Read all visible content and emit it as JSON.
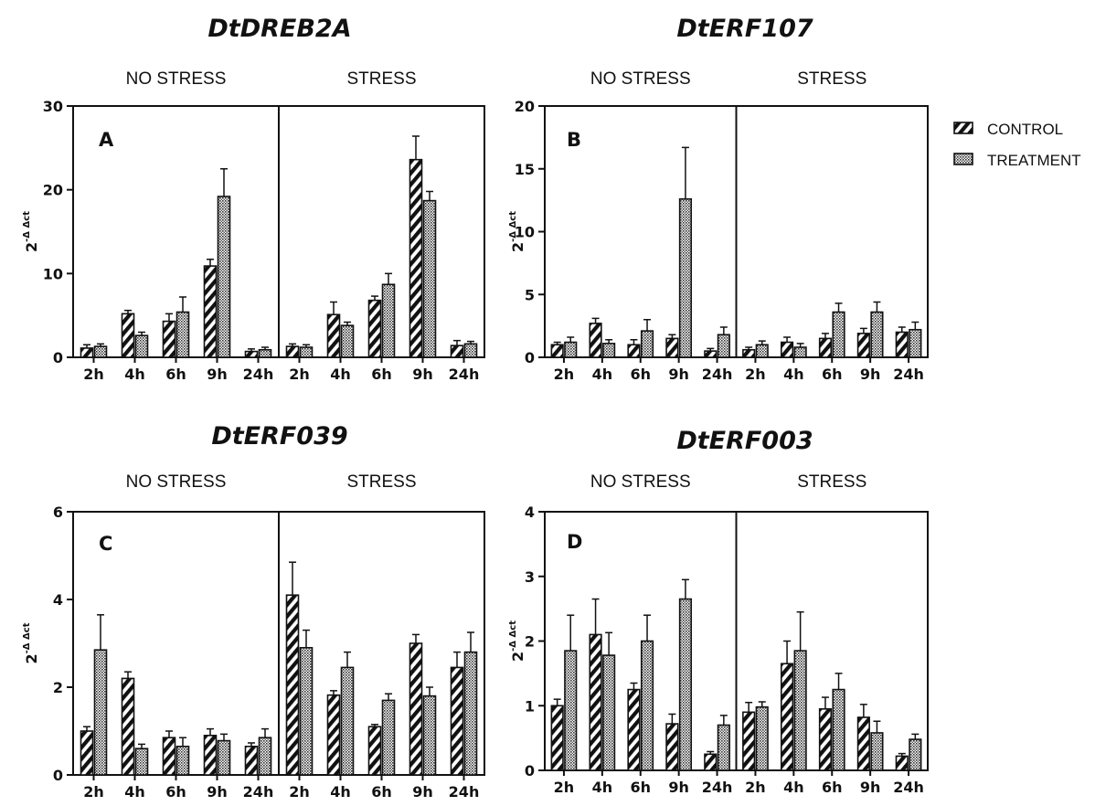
{
  "legend": {
    "position": "right",
    "items": [
      {
        "label": "CONTROL",
        "pattern": "hatch"
      },
      {
        "label": "TREATMENT",
        "pattern": "crosshatch"
      }
    ]
  },
  "colors": {
    "ink": "#111111",
    "background": "#ffffff"
  },
  "chart_data": [
    {
      "type": "bar",
      "title": "DtDREB2A",
      "panel_letter": "A",
      "ylabel_base": "2",
      "ylabel_exp": "-Δ Δct",
      "ylim": [
        0,
        30
      ],
      "yticks": [
        0,
        10,
        20,
        30
      ],
      "groups": [
        {
          "label": "NO STRESS",
          "categories": [
            "2h",
            "4h",
            "6h",
            "9h",
            "24h"
          ],
          "series": [
            {
              "values": [
                1.1,
                5.2,
                4.3,
                10.9,
                0.7
              ],
              "errors": [
                0.4,
                0.4,
                0.9,
                0.8,
                0.3
              ]
            },
            {
              "values": [
                1.3,
                2.6,
                5.4,
                19.2,
                0.9
              ],
              "errors": [
                0.3,
                0.4,
                1.8,
                3.3,
                0.3
              ]
            }
          ]
        },
        {
          "label": "STRESS",
          "categories": [
            "2h",
            "4h",
            "6h",
            "9h",
            "24h"
          ],
          "series": [
            {
              "values": [
                1.3,
                5.1,
                6.8,
                23.6,
                1.4
              ],
              "errors": [
                0.3,
                1.5,
                0.5,
                2.8,
                0.6
              ]
            },
            {
              "values": [
                1.2,
                3.8,
                8.7,
                18.7,
                1.6
              ],
              "errors": [
                0.3,
                0.4,
                1.3,
                1.1,
                0.3
              ]
            }
          ]
        }
      ]
    },
    {
      "type": "bar",
      "title": "DtERF107",
      "panel_letter": "B",
      "ylabel_base": "2",
      "ylabel_exp": "-Δ Δct",
      "ylim": [
        0,
        20
      ],
      "yticks": [
        0,
        5,
        10,
        15,
        20
      ],
      "groups": [
        {
          "label": "NO STRESS",
          "categories": [
            "2h",
            "4h",
            "6h",
            "9h",
            "24h"
          ],
          "series": [
            {
              "values": [
                1.0,
                2.7,
                1.0,
                1.5,
                0.5
              ],
              "errors": [
                0.2,
                0.4,
                0.4,
                0.3,
                0.2
              ]
            },
            {
              "values": [
                1.2,
                1.1,
                2.1,
                12.6,
                1.8
              ],
              "errors": [
                0.4,
                0.3,
                0.9,
                4.1,
                0.6
              ]
            }
          ]
        },
        {
          "label": "STRESS",
          "categories": [
            "2h",
            "4h",
            "6h",
            "9h",
            "24h"
          ],
          "series": [
            {
              "values": [
                0.6,
                1.2,
                1.5,
                1.9,
                2.0
              ],
              "errors": [
                0.2,
                0.4,
                0.4,
                0.4,
                0.4
              ]
            },
            {
              "values": [
                1.0,
                0.8,
                3.6,
                3.6,
                2.2
              ],
              "errors": [
                0.3,
                0.3,
                0.7,
                0.8,
                0.6
              ]
            }
          ]
        }
      ]
    },
    {
      "type": "bar",
      "title": "DtERF039",
      "panel_letter": "C",
      "ylabel_base": "2",
      "ylabel_exp": "-Δ Δct",
      "ylim": [
        0,
        6
      ],
      "yticks": [
        0,
        2,
        4,
        6
      ],
      "groups": [
        {
          "label": "NO STRESS",
          "categories": [
            "2h",
            "4h",
            "6h",
            "9h",
            "24h"
          ],
          "series": [
            {
              "values": [
                1.0,
                2.2,
                0.85,
                0.9,
                0.65
              ],
              "errors": [
                0.1,
                0.15,
                0.15,
                0.15,
                0.08
              ]
            },
            {
              "values": [
                2.85,
                0.6,
                0.65,
                0.78,
                0.85
              ],
              "errors": [
                0.8,
                0.1,
                0.2,
                0.15,
                0.2
              ]
            }
          ]
        },
        {
          "label": "STRESS",
          "categories": [
            "2h",
            "4h",
            "6h",
            "9h",
            "24h"
          ],
          "series": [
            {
              "values": [
                4.1,
                1.82,
                1.1,
                3.0,
                2.45
              ],
              "errors": [
                0.75,
                0.1,
                0.05,
                0.2,
                0.35
              ]
            },
            {
              "values": [
                2.9,
                2.45,
                1.7,
                1.8,
                2.8
              ],
              "errors": [
                0.4,
                0.35,
                0.15,
                0.2,
                0.45
              ]
            }
          ]
        }
      ]
    },
    {
      "type": "bar",
      "title": "DtERF003",
      "panel_letter": "D",
      "ylabel_base": "2",
      "ylabel_exp": "-Δ Δct",
      "ylim": [
        0,
        4
      ],
      "yticks": [
        0,
        1,
        2,
        3,
        4
      ],
      "groups": [
        {
          "label": "NO STRESS",
          "categories": [
            "2h",
            "4h",
            "6h",
            "9h",
            "24h"
          ],
          "series": [
            {
              "values": [
                1.0,
                2.1,
                1.25,
                0.72,
                0.25
              ],
              "errors": [
                0.1,
                0.55,
                0.1,
                0.15,
                0.04
              ]
            },
            {
              "values": [
                1.85,
                1.78,
                2.0,
                2.65,
                0.7
              ],
              "errors": [
                0.55,
                0.35,
                0.4,
                0.3,
                0.15
              ]
            }
          ]
        },
        {
          "label": "STRESS",
          "categories": [
            "2h",
            "4h",
            "6h",
            "9h",
            "24h"
          ],
          "series": [
            {
              "values": [
                0.9,
                1.65,
                0.95,
                0.82,
                0.22
              ],
              "errors": [
                0.15,
                0.35,
                0.18,
                0.2,
                0.04
              ]
            },
            {
              "values": [
                0.98,
                1.85,
                1.25,
                0.58,
                0.48
              ],
              "errors": [
                0.08,
                0.6,
                0.25,
                0.18,
                0.08
              ]
            }
          ]
        }
      ]
    }
  ]
}
